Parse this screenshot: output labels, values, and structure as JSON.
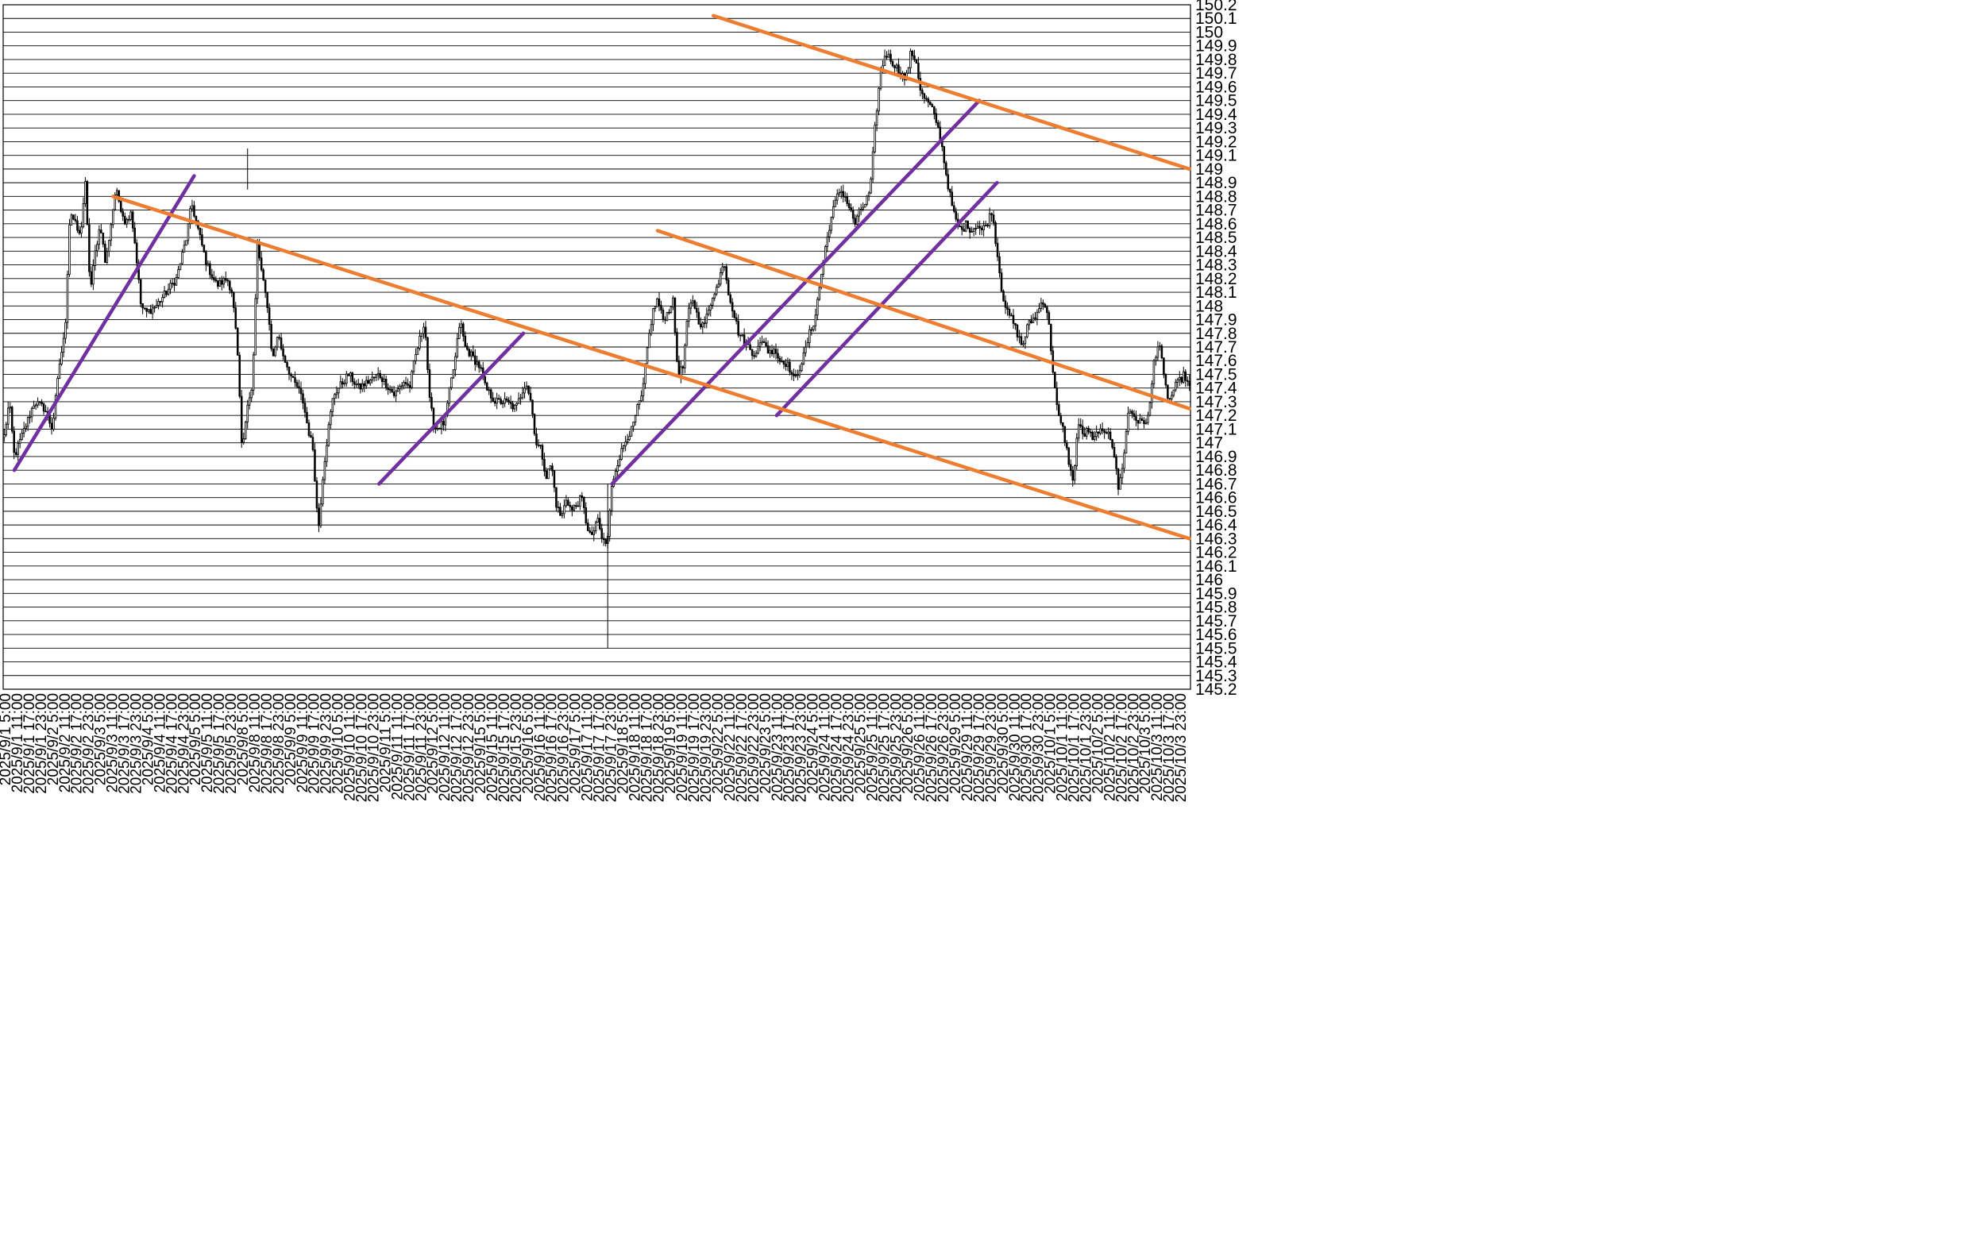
{
  "chart_data": {
    "type": "candlestick",
    "title": "",
    "xlabel": "",
    "ylabel": "",
    "ylim": [
      145.2,
      150.2
    ],
    "y_tick_step": 0.1,
    "y_ticks": [
      145.2,
      145.3,
      145.4,
      145.5,
      145.6,
      145.7,
      145.8,
      145.9,
      146,
      146.1,
      146.2,
      146.3,
      146.4,
      146.5,
      146.6,
      146.7,
      146.8,
      146.9,
      147,
      147.1,
      147.2,
      147.3,
      147.4,
      147.5,
      147.6,
      147.7,
      147.8,
      147.9,
      148,
      148.1,
      148.2,
      148.3,
      148.4,
      148.5,
      148.6,
      148.7,
      148.8,
      148.9,
      149,
      149.1,
      149.2,
      149.3,
      149.4,
      149.5,
      149.6,
      149.7,
      149.8,
      149.9,
      150,
      150.1,
      150.2
    ],
    "grid": "horizontal",
    "x_ticks": [
      "2025/9/1 5:00",
      "2025/9/1 11:00",
      "2025/9/1 17:00",
      "2025/9/1 23:00",
      "2025/9/2 5:00",
      "2025/9/2 11:00",
      "2025/9/2 17:00",
      "2025/9/2 23:00",
      "2025/9/3 5:00",
      "2025/9/3 11:00",
      "2025/9/3 17:00",
      "2025/9/3 23:00",
      "2025/9/4 5:00",
      "2025/9/4 11:00",
      "2025/9/4 17:00",
      "2025/9/4 23:00",
      "2025/9/5 5:00",
      "2025/9/5 11:00",
      "2025/9/5 17:00",
      "2025/9/5 23:00",
      "2025/9/8 5:00",
      "2025/9/8 11:00",
      "2025/9/8 17:00",
      "2025/9/8 23:00",
      "2025/9/9 5:00",
      "2025/9/9 11:00",
      "2025/9/9 17:00",
      "2025/9/9 23:00",
      "2025/9/10 5:00",
      "2025/9/10 11:00",
      "2025/9/10 17:00",
      "2025/9/10 23:00",
      "2025/9/11 5:00",
      "2025/9/11 11:00",
      "2025/9/11 17:00",
      "2025/9/11 23:00",
      "2025/9/12 5:00",
      "2025/9/12 11:00",
      "2025/9/12 17:00",
      "2025/9/12 23:00",
      "2025/9/15 5:00",
      "2025/9/15 11:00",
      "2025/9/15 17:00",
      "2025/9/15 23:00",
      "2025/9/16 5:00",
      "2025/9/16 11:00",
      "2025/9/16 17:00",
      "2025/9/16 23:00",
      "2025/9/17 5:00",
      "2025/9/17 11:00",
      "2025/9/17 17:00",
      "2025/9/17 23:00",
      "2025/9/18 5:00",
      "2025/9/18 11:00",
      "2025/9/18 17:00",
      "2025/9/18 23:00",
      "2025/9/19 5:00",
      "2025/9/19 11:00",
      "2025/9/19 17:00",
      "2025/9/19 23:00",
      "2025/9/22 5:00",
      "2025/9/22 11:00",
      "2025/9/22 17:00",
      "2025/9/22 23:00",
      "2025/9/23 5:00",
      "2025/9/23 11:00",
      "2025/9/23 17:00",
      "2025/9/23 23:00",
      "2025/9/24 5:00",
      "2025/9/24 11:00",
      "2025/9/24 17:00",
      "2025/9/24 23:00",
      "2025/9/25 5:00",
      "2025/9/25 11:00",
      "2025/9/25 17:00",
      "2025/9/25 23:00",
      "2025/9/26 5:00",
      "2025/9/26 11:00",
      "2025/9/26 17:00",
      "2025/9/26 23:00",
      "2025/9/29 5:00",
      "2025/9/29 11:00",
      "2025/9/29 17:00",
      "2025/9/29 23:00",
      "2025/9/30 5:00",
      "2025/9/30 11:00",
      "2025/9/30 17:00",
      "2025/9/30 23:00",
      "2025/10/1 5:00",
      "2025/10/1 11:00",
      "2025/10/1 17:00",
      "2025/10/1 23:00",
      "2025/10/2 5:00",
      "2025/10/2 11:00",
      "2025/10/2 17:00",
      "2025/10/2 23:00",
      "2025/10/3 5:00",
      "2025/10/3 11:00",
      "2025/10/3 17:00",
      "2025/10/3 23:00"
    ],
    "bars_per_tick": 6,
    "close_path": [
      [
        0,
        147.05
      ],
      [
        2,
        147.3
      ],
      [
        4,
        146.9
      ],
      [
        8,
        147.1
      ],
      [
        12,
        147.3
      ],
      [
        16,
        147.25
      ],
      [
        19,
        147.1
      ],
      [
        22,
        147.6
      ],
      [
        24,
        147.8
      ],
      [
        26,
        148.7
      ],
      [
        30,
        148.5
      ],
      [
        32,
        148.9
      ],
      [
        34,
        148.1
      ],
      [
        36,
        148.4
      ],
      [
        38,
        148.6
      ],
      [
        40,
        148.3
      ],
      [
        44,
        148.85
      ],
      [
        48,
        148.6
      ],
      [
        50,
        148.7
      ],
      [
        52,
        148.4
      ],
      [
        54,
        148.0
      ],
      [
        56,
        147.95
      ],
      [
        60,
        148.0
      ],
      [
        64,
        148.1
      ],
      [
        68,
        148.2
      ],
      [
        70,
        148.35
      ],
      [
        72,
        148.5
      ],
      [
        74,
        148.75
      ],
      [
        76,
        148.6
      ],
      [
        80,
        148.3
      ],
      [
        84,
        148.15
      ],
      [
        88,
        148.2
      ],
      [
        90,
        148.1
      ],
      [
        92,
        147.7
      ],
      [
        94,
        146.9
      ],
      [
        96,
        147.3
      ],
      [
        98,
        147.4
      ],
      [
        100,
        148.45
      ],
      [
        102,
        148.2
      ],
      [
        104,
        148.0
      ],
      [
        106,
        147.6
      ],
      [
        108,
        147.8
      ],
      [
        110,
        147.65
      ],
      [
        112,
        147.55
      ],
      [
        114,
        147.45
      ],
      [
        116,
        147.4
      ],
      [
        118,
        147.3
      ],
      [
        120,
        147.1
      ],
      [
        122,
        146.95
      ],
      [
        124,
        146.35
      ],
      [
        126,
        146.8
      ],
      [
        128,
        147.1
      ],
      [
        130,
        147.35
      ],
      [
        132,
        147.4
      ],
      [
        136,
        147.5
      ],
      [
        140,
        147.4
      ],
      [
        144,
        147.45
      ],
      [
        148,
        147.5
      ],
      [
        150,
        147.45
      ],
      [
        154,
        147.35
      ],
      [
        158,
        147.45
      ],
      [
        160,
        147.4
      ],
      [
        162,
        147.6
      ],
      [
        164,
        147.75
      ],
      [
        166,
        147.9
      ],
      [
        168,
        147.3
      ],
      [
        170,
        147.1
      ],
      [
        174,
        147.15
      ],
      [
        176,
        147.4
      ],
      [
        178,
        147.6
      ],
      [
        180,
        147.9
      ],
      [
        182,
        147.7
      ],
      [
        184,
        147.65
      ],
      [
        188,
        147.55
      ],
      [
        190,
        147.4
      ],
      [
        194,
        147.3
      ],
      [
        198,
        147.3
      ],
      [
        202,
        147.25
      ],
      [
        206,
        147.45
      ],
      [
        208,
        147.3
      ],
      [
        210,
        147.0
      ],
      [
        212,
        146.95
      ],
      [
        214,
        146.75
      ],
      [
        216,
        146.85
      ],
      [
        218,
        146.55
      ],
      [
        220,
        146.45
      ],
      [
        222,
        146.6
      ],
      [
        224,
        146.5
      ],
      [
        226,
        146.55
      ],
      [
        228,
        146.6
      ],
      [
        230,
        146.4
      ],
      [
        232,
        146.3
      ],
      [
        234,
        146.45
      ],
      [
        236,
        146.3
      ],
      [
        238,
        146.25
      ],
      [
        240,
        146.7
      ],
      [
        242,
        146.85
      ],
      [
        244,
        146.95
      ],
      [
        246,
        147.05
      ],
      [
        248,
        147.1
      ],
      [
        250,
        147.25
      ],
      [
        252,
        147.35
      ],
      [
        254,
        147.7
      ],
      [
        256,
        147.95
      ],
      [
        258,
        148.05
      ],
      [
        260,
        147.9
      ],
      [
        262,
        147.95
      ],
      [
        264,
        148.05
      ],
      [
        266,
        147.5
      ],
      [
        268,
        147.55
      ],
      [
        270,
        147.95
      ],
      [
        272,
        148.05
      ],
      [
        274,
        147.9
      ],
      [
        276,
        147.85
      ],
      [
        278,
        147.95
      ],
      [
        280,
        148.1
      ],
      [
        282,
        148.15
      ],
      [
        284,
        148.35
      ],
      [
        286,
        148.1
      ],
      [
        288,
        147.95
      ],
      [
        290,
        147.8
      ],
      [
        292,
        147.75
      ],
      [
        294,
        147.7
      ],
      [
        296,
        147.65
      ],
      [
        298,
        147.7
      ],
      [
        300,
        147.75
      ],
      [
        302,
        147.65
      ],
      [
        304,
        147.7
      ],
      [
        306,
        147.6
      ],
      [
        308,
        147.6
      ],
      [
        310,
        147.55
      ],
      [
        312,
        147.45
      ],
      [
        314,
        147.55
      ],
      [
        316,
        147.65
      ],
      [
        318,
        147.8
      ],
      [
        320,
        147.9
      ],
      [
        322,
        148.15
      ],
      [
        324,
        148.4
      ],
      [
        326,
        148.6
      ],
      [
        328,
        148.75
      ],
      [
        330,
        148.85
      ],
      [
        332,
        148.8
      ],
      [
        334,
        148.7
      ],
      [
        336,
        148.6
      ],
      [
        338,
        148.7
      ],
      [
        340,
        148.75
      ],
      [
        342,
        148.85
      ],
      [
        344,
        149.35
      ],
      [
        346,
        149.7
      ],
      [
        348,
        149.85
      ],
      [
        350,
        149.8
      ],
      [
        352,
        149.75
      ],
      [
        354,
        149.7
      ],
      [
        356,
        149.65
      ],
      [
        358,
        149.85
      ],
      [
        360,
        149.8
      ],
      [
        362,
        149.55
      ],
      [
        364,
        149.5
      ],
      [
        366,
        149.45
      ],
      [
        368,
        149.35
      ],
      [
        370,
        149.2
      ],
      [
        372,
        148.95
      ],
      [
        374,
        148.75
      ],
      [
        376,
        148.6
      ],
      [
        378,
        148.55
      ],
      [
        380,
        148.6
      ],
      [
        382,
        148.55
      ],
      [
        384,
        148.6
      ],
      [
        386,
        148.55
      ],
      [
        388,
        148.6
      ],
      [
        390,
        148.7
      ],
      [
        392,
        148.4
      ],
      [
        394,
        148.1
      ],
      [
        396,
        147.95
      ],
      [
        398,
        147.9
      ],
      [
        400,
        147.8
      ],
      [
        402,
        147.7
      ],
      [
        404,
        147.85
      ],
      [
        406,
        147.9
      ],
      [
        408,
        147.95
      ],
      [
        410,
        148.05
      ],
      [
        412,
        147.95
      ],
      [
        414,
        147.55
      ],
      [
        416,
        147.2
      ],
      [
        418,
        147.1
      ],
      [
        420,
        146.9
      ],
      [
        422,
        146.7
      ],
      [
        424,
        147.15
      ],
      [
        426,
        147.05
      ],
      [
        428,
        147.1
      ],
      [
        430,
        147.0
      ],
      [
        432,
        147.1
      ],
      [
        434,
        147.05
      ],
      [
        436,
        147.1
      ],
      [
        438,
        146.95
      ],
      [
        440,
        146.65
      ],
      [
        442,
        146.9
      ],
      [
        444,
        147.25
      ],
      [
        446,
        147.2
      ],
      [
        448,
        147.15
      ],
      [
        450,
        147.15
      ],
      [
        452,
        147.2
      ],
      [
        454,
        147.6
      ],
      [
        456,
        147.75
      ],
      [
        458,
        147.45
      ],
      [
        460,
        147.3
      ],
      [
        462,
        147.4
      ],
      [
        464,
        147.45
      ],
      [
        466,
        147.5
      ],
      [
        468,
        147.4
      ]
    ],
    "overlay_lines": [
      {
        "color": "#7030a0",
        "from": [
          4,
          146.8
        ],
        "to": [
          75,
          148.95
        ]
      },
      {
        "color": "#7030a0",
        "from": [
          148,
          146.7
        ],
        "to": [
          205,
          147.8
        ]
      },
      {
        "color": "#7030a0",
        "from": [
          240,
          146.7
        ],
        "to": [
          385,
          149.5
        ]
      },
      {
        "color": "#7030a0",
        "from": [
          305,
          147.2
        ],
        "to": [
          392,
          148.9
        ]
      },
      {
        "color": "#ed7d31",
        "from": [
          43,
          148.8
        ],
        "to": [
          468,
          146.3
        ]
      },
      {
        "color": "#ed7d31",
        "from": [
          258,
          148.55
        ],
        "to": [
          468,
          147.25
        ]
      },
      {
        "color": "#ed7d31",
        "from": [
          280,
          150.12
        ],
        "to": [
          468,
          149.0
        ]
      }
    ]
  }
}
